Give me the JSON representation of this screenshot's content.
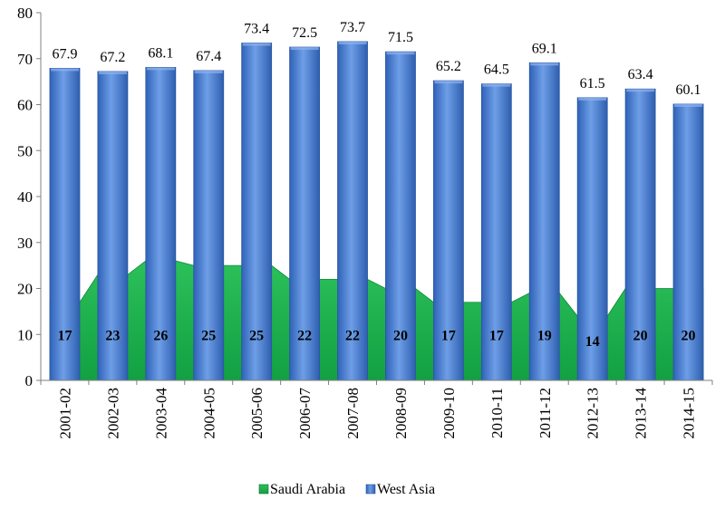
{
  "chart_data": {
    "type": "bar",
    "categories": [
      "2001-02",
      "2002-03",
      "2003-04",
      "2004-05",
      "2005-06",
      "2006-07",
      "2007-08",
      "2008-09",
      "2009-10",
      "2010-11",
      "2011-12",
      "2012-13",
      "2013-14",
      "2014-15"
    ],
    "series": [
      {
        "name": "Saudi Arabia",
        "type": "area",
        "color": "#20b050",
        "values": [
          17,
          23,
          26,
          25,
          25,
          22,
          22,
          20,
          17,
          17,
          19,
          14,
          20,
          20
        ],
        "labels": [
          "17",
          "23",
          "26",
          "25",
          "25",
          "22",
          "22",
          "20",
          "17",
          "17",
          "19",
          "14",
          "20",
          "20"
        ]
      },
      {
        "name": "West Asia",
        "type": "bar",
        "color": "#4a7fd0",
        "values": [
          67.9,
          67.2,
          68.1,
          67.4,
          73.4,
          72.5,
          73.7,
          71.5,
          65.2,
          64.5,
          69.1,
          61.5,
          63.4,
          60.1
        ],
        "labels": [
          "67.9",
          "67.2",
          "68.1",
          "67.4",
          "73.4",
          "72.5",
          "73.7",
          "71.5",
          "65.2",
          "64.5",
          "69.1",
          "61.5",
          "63.4",
          "60.1"
        ]
      }
    ],
    "ylim": [
      0,
      80
    ],
    "yticks": [
      "0",
      "10",
      "20",
      "30",
      "40",
      "50",
      "60",
      "70",
      "80"
    ],
    "xlabel": "",
    "ylabel": "",
    "title": "",
    "grid": false,
    "legend_position": "bottom"
  }
}
